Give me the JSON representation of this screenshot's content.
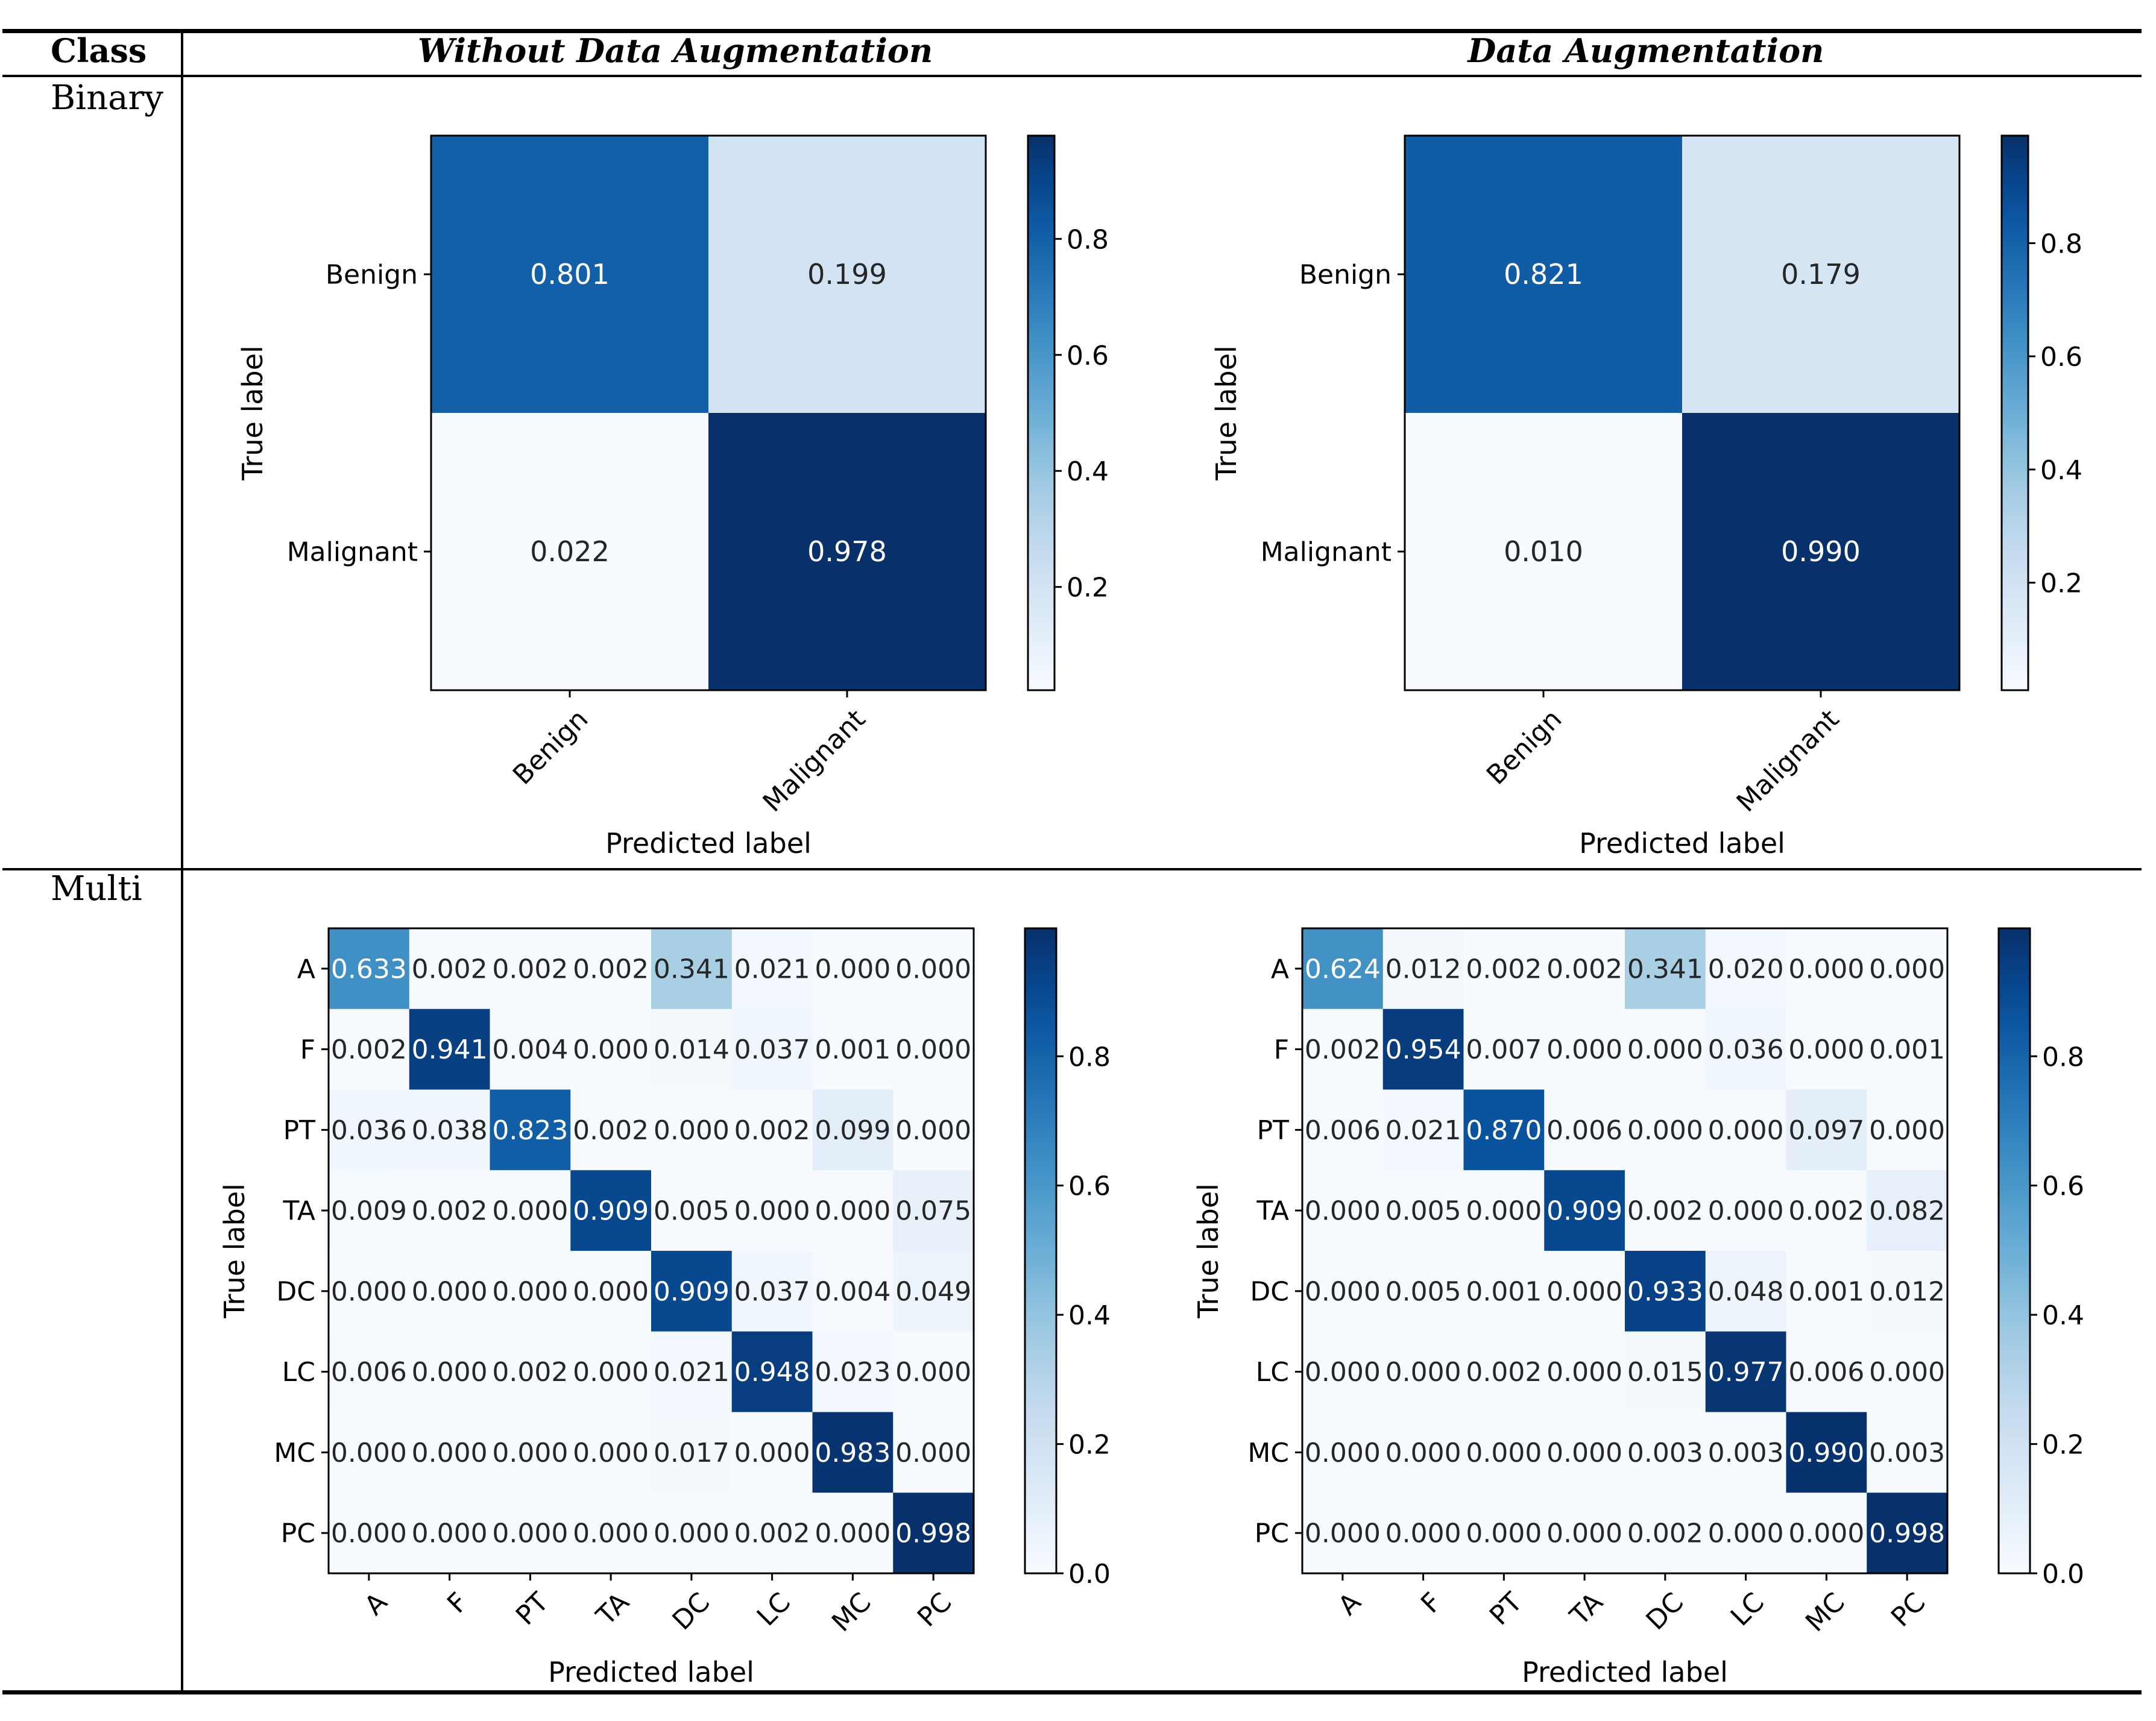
{
  "table": {
    "header_class": "Class",
    "header_col1": "Without Data Augmentation",
    "header_col2": "Data Augmentation",
    "row_binary": "Binary",
    "row_multi": "Multi"
  },
  "colors": {
    "low": "#f7fbff",
    "high": "#08306b",
    "text_dark": "#262626",
    "text_light": "#ffffff"
  },
  "chart_data": [
    {
      "type": "heatmap",
      "id": "binary-without",
      "title": "",
      "xlabel": "Predicted label",
      "ylabel": "True label",
      "labels": [
        "Benign",
        "Malignant"
      ],
      "matrix": [
        [
          0.801,
          0.199
        ],
        [
          0.022,
          0.978
        ]
      ],
      "cell_text": [
        [
          "0.801",
          "0.199"
        ],
        [
          "0.022",
          "0.978"
        ]
      ],
      "colorbar_ticks": [
        0.2,
        0.4,
        0.6,
        0.8
      ],
      "colorbar_tick_labels": [
        "0.2",
        "0.4",
        "0.6",
        "0.8"
      ],
      "vmin": 0.022,
      "vmax": 0.978
    },
    {
      "type": "heatmap",
      "id": "binary-with",
      "title": "",
      "xlabel": "Predicted label",
      "ylabel": "True label",
      "labels": [
        "Benign",
        "Malignant"
      ],
      "matrix": [
        [
          0.821,
          0.179
        ],
        [
          0.01,
          0.99
        ]
      ],
      "cell_text": [
        [
          "0.821",
          "0.179"
        ],
        [
          "0.010",
          "0.990"
        ]
      ],
      "colorbar_ticks": [
        0.2,
        0.4,
        0.6,
        0.8
      ],
      "colorbar_tick_labels": [
        "0.2",
        "0.4",
        "0.6",
        "0.8"
      ],
      "vmin": 0.01,
      "vmax": 0.99
    },
    {
      "type": "heatmap",
      "id": "multi-without",
      "title": "",
      "xlabel": "Predicted label",
      "ylabel": "True label",
      "labels": [
        "A",
        "F",
        "PT",
        "TA",
        "DC",
        "LC",
        "MC",
        "PC"
      ],
      "matrix": [
        [
          0.633,
          0.002,
          0.002,
          0.002,
          0.341,
          0.021,
          0.0,
          0.0
        ],
        [
          0.002,
          0.941,
          0.004,
          0.0,
          0.014,
          0.037,
          0.001,
          0.0
        ],
        [
          0.036,
          0.038,
          0.823,
          0.002,
          0.0,
          0.002,
          0.099,
          0.0
        ],
        [
          0.009,
          0.002,
          0.0,
          0.909,
          0.005,
          0.0,
          0.0,
          0.075
        ],
        [
          0.0,
          0.0,
          0.0,
          0.0,
          0.909,
          0.037,
          0.004,
          0.049
        ],
        [
          0.006,
          0.0,
          0.002,
          0.0,
          0.021,
          0.948,
          0.023,
          0.0
        ],
        [
          0.0,
          0.0,
          0.0,
          0.0,
          0.017,
          0.0,
          0.983,
          0.0
        ],
        [
          0.0,
          0.0,
          0.0,
          0.0,
          0.0,
          0.002,
          0.0,
          0.998
        ]
      ],
      "cell_text": [
        [
          "0.633",
          "0.002",
          "0.002",
          "0.002",
          "0.341",
          "0.021",
          "0.000",
          "0.000"
        ],
        [
          "0.002",
          "0.941",
          "0.004",
          "0.000",
          "0.014",
          "0.037",
          "0.001",
          "0.000"
        ],
        [
          "0.036",
          "0.038",
          "0.823",
          "0.002",
          "0.000",
          "0.002",
          "0.099",
          "0.000"
        ],
        [
          "0.009",
          "0.002",
          "0.000",
          "0.909",
          "0.005",
          "0.000",
          "0.000",
          "0.075"
        ],
        [
          "0.000",
          "0.000",
          "0.000",
          "0.000",
          "0.909",
          "0.037",
          "0.004",
          "0.049"
        ],
        [
          "0.006",
          "0.000",
          "0.002",
          "0.000",
          "0.021",
          "0.948",
          "0.023",
          "0.000"
        ],
        [
          "0.000",
          "0.000",
          "0.000",
          "0.000",
          "0.017",
          "0.000",
          "0.983",
          "0.000"
        ],
        [
          "0.000",
          "0.000",
          "0.000",
          "0.000",
          "0.000",
          "0.002",
          "0.000",
          "0.998"
        ]
      ],
      "colorbar_ticks": [
        0.0,
        0.2,
        0.4,
        0.6,
        0.8
      ],
      "colorbar_tick_labels": [
        "0.0",
        "0.2",
        "0.4",
        "0.6",
        "0.8"
      ],
      "vmin": 0.0,
      "vmax": 0.998
    },
    {
      "type": "heatmap",
      "id": "multi-with",
      "title": "",
      "xlabel": "Predicted label",
      "ylabel": "True label",
      "labels": [
        "A",
        "F",
        "PT",
        "TA",
        "DC",
        "LC",
        "MC",
        "PC"
      ],
      "matrix": [
        [
          0.624,
          0.012,
          0.002,
          0.002,
          0.341,
          0.02,
          0.0,
          0.0
        ],
        [
          0.002,
          0.954,
          0.007,
          0.0,
          0.0,
          0.036,
          0.0,
          0.001
        ],
        [
          0.006,
          0.021,
          0.87,
          0.006,
          0.0,
          0.0,
          0.097,
          0.0
        ],
        [
          0.0,
          0.005,
          0.0,
          0.909,
          0.002,
          0.0,
          0.002,
          0.082
        ],
        [
          0.0,
          0.005,
          0.001,
          0.0,
          0.933,
          0.048,
          0.001,
          0.012
        ],
        [
          0.0,
          0.0,
          0.002,
          0.0,
          0.015,
          0.977,
          0.006,
          0.0
        ],
        [
          0.0,
          0.0,
          0.0,
          0.0,
          0.003,
          0.003,
          0.99,
          0.003
        ],
        [
          0.0,
          0.0,
          0.0,
          0.0,
          0.002,
          0.0,
          0.0,
          0.998
        ]
      ],
      "cell_text": [
        [
          "0.624",
          "0.012",
          "0.002",
          "0.002",
          "0.341",
          "0.020",
          "0.000",
          "0.000"
        ],
        [
          "0.002",
          "0.954",
          "0.007",
          "0.000",
          "0.000",
          "0.036",
          "0.000",
          "0.001"
        ],
        [
          "0.006",
          "0.021",
          "0.870",
          "0.006",
          "0.000",
          "0.000",
          "0.097",
          "0.000"
        ],
        [
          "0.000",
          "0.005",
          "0.000",
          "0.909",
          "0.002",
          "0.000",
          "0.002",
          "0.082"
        ],
        [
          "0.000",
          "0.005",
          "0.001",
          "0.000",
          "0.933",
          "0.048",
          "0.001",
          "0.012"
        ],
        [
          "0.000",
          "0.000",
          "0.002",
          "0.000",
          "0.015",
          "0.977",
          "0.006",
          "0.000"
        ],
        [
          "0.000",
          "0.000",
          "0.000",
          "0.000",
          "0.003",
          "0.003",
          "0.990",
          "0.003"
        ],
        [
          "0.000",
          "0.000",
          "0.000",
          "0.000",
          "0.002",
          "0.000",
          "0.000",
          "0.998"
        ]
      ],
      "colorbar_ticks": [
        0.0,
        0.2,
        0.4,
        0.6,
        0.8
      ],
      "colorbar_tick_labels": [
        "0.0",
        "0.2",
        "0.4",
        "0.6",
        "0.8"
      ],
      "vmin": 0.0,
      "vmax": 0.998
    }
  ]
}
